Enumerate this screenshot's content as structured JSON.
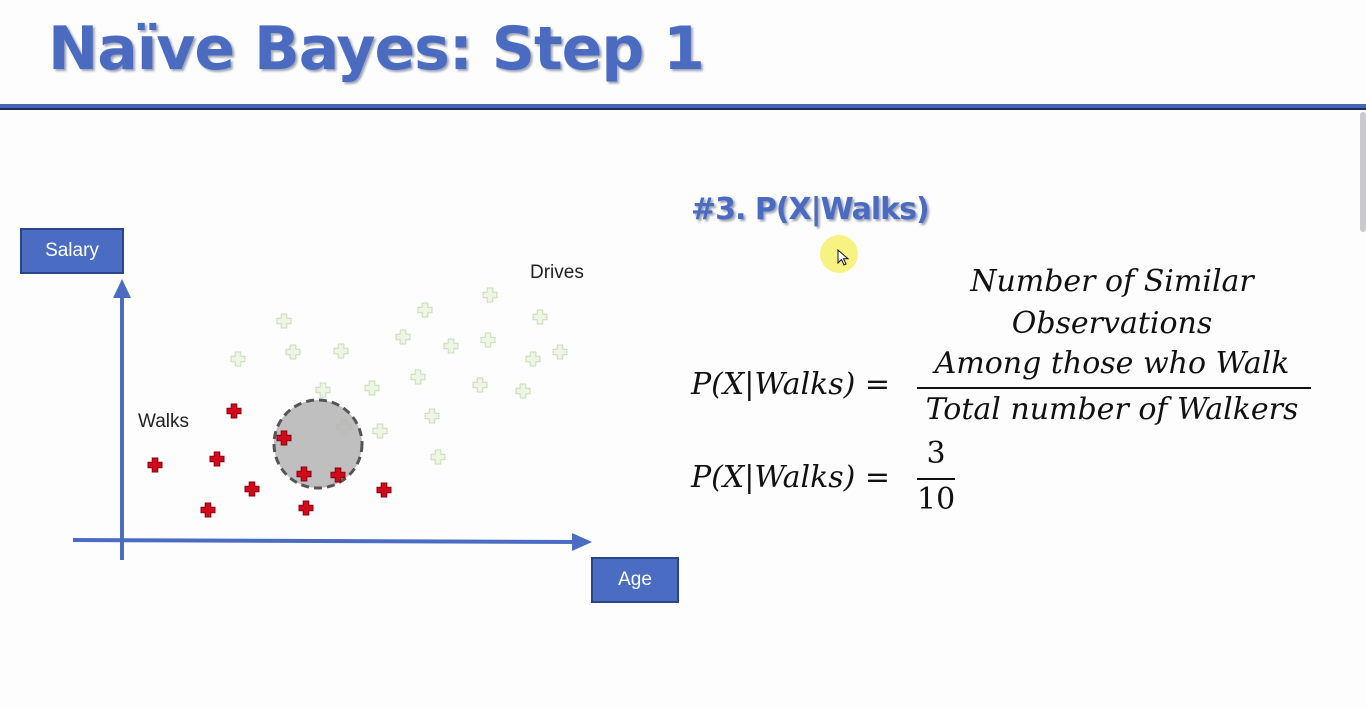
{
  "slide": {
    "title": "Naïve Bayes: Step 1"
  },
  "chart": {
    "y_axis_label": "Salary",
    "x_axis_label": "Age",
    "walks_label": "Walks",
    "drives_label": "Drives",
    "colors": {
      "axis": "#4a6cc2",
      "walks_point": "#d10a1c",
      "drives_point": "#c9dcb4",
      "circle_fill": "#b4b4b4",
      "circle_stroke": "#555555"
    }
  },
  "formula": {
    "heading": "#3. P(X|Walks)",
    "lhs": "P(X|Walks) =",
    "numerator_line1": "Number of Similar",
    "numerator_line2": "Observations",
    "numerator_line3": "Among those who Walk",
    "denominator": "Total number of Walkers",
    "result_lhs": "P(X|Walks) =",
    "result_numerator": "3",
    "result_denominator": "10"
  }
}
